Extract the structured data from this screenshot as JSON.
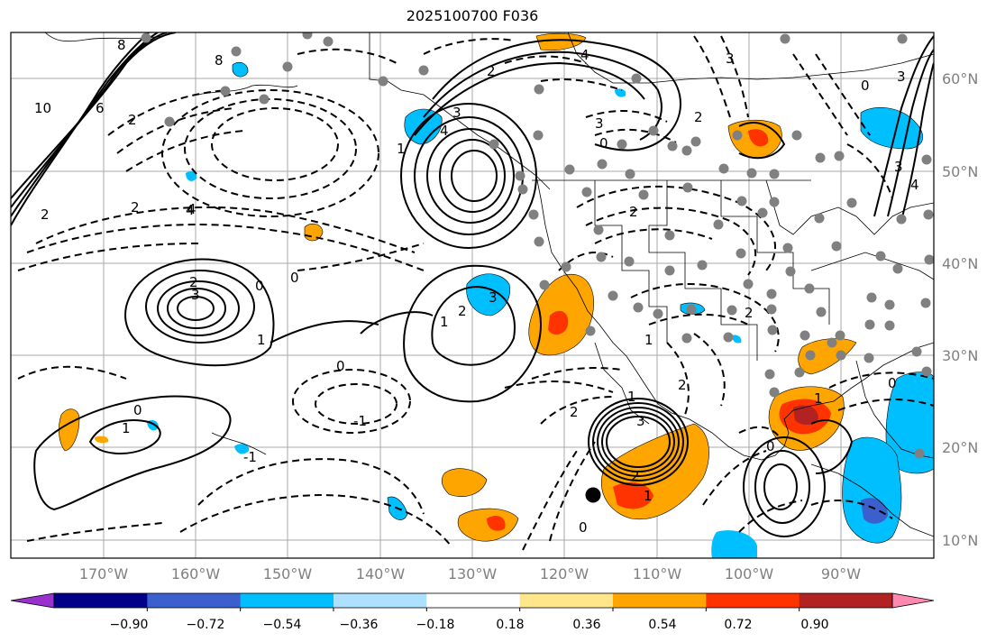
{
  "title": "2025100700 F036",
  "map": {
    "lat_ticks": [
      "60°N",
      "50°N",
      "40°N",
      "30°N",
      "20°N",
      "10°N"
    ],
    "lon_ticks": [
      "170°W",
      "160°W",
      "150°W",
      "140°W",
      "130°W",
      "120°W",
      "110°W",
      "100°W",
      "90°W"
    ],
    "contour_labels": [
      "10",
      "8",
      "8",
      "6",
      "2",
      "2",
      "2",
      "4",
      "2",
      "3",
      "0",
      "0",
      "-1",
      "1",
      "0",
      "1",
      "0",
      "-1",
      "1",
      "3",
      "2",
      "4",
      "3",
      "0",
      "2",
      "4",
      "3",
      "1",
      "3",
      "1",
      "2",
      "2",
      "0",
      "1",
      "2",
      "1",
      "0",
      "1",
      "4",
      "2",
      "3",
      "2",
      "2",
      "0",
      "0",
      "3",
      "4",
      "3"
    ]
  },
  "colorbar": {
    "colors": [
      "#9932cc",
      "#000088",
      "#3b5fcd",
      "#00bfff",
      "#aee0ff",
      "#ffffff",
      "#ffe68a",
      "#ffa500",
      "#ff3300",
      "#b22222",
      "#ff88b0"
    ],
    "tick_labels": [
      "−0.90",
      "−0.72",
      "−0.54",
      "−0.36",
      "−0.18",
      "0.18",
      "0.36",
      "0.54",
      "0.72",
      "0.90"
    ]
  }
}
